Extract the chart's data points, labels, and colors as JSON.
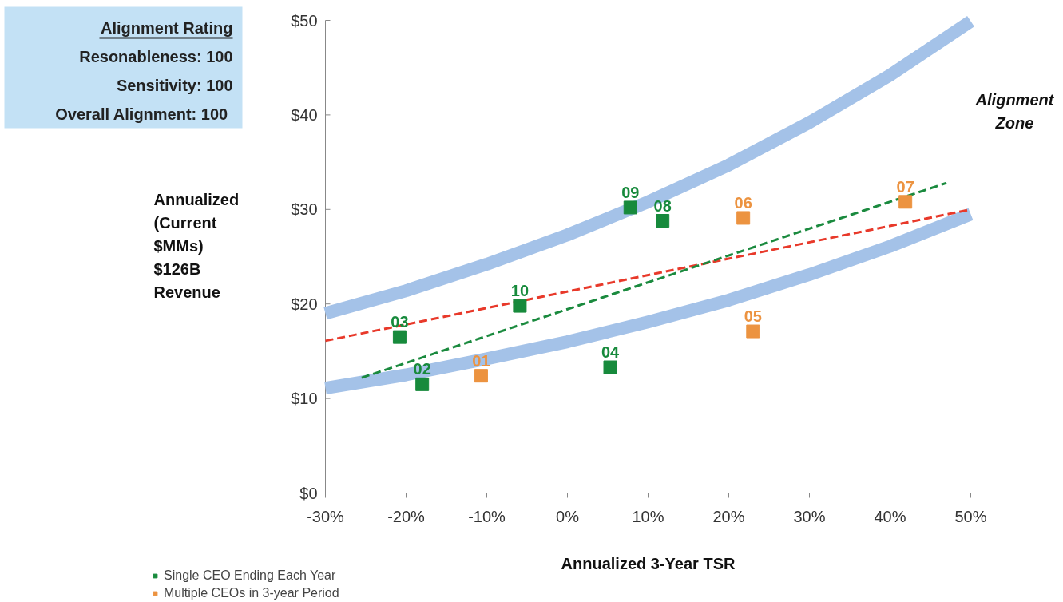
{
  "chart_data": {
    "type": "scatter",
    "xlabel": "Annualized 3-Year TSR",
    "ylabel": "Annualized (Current $MMs) $126B Revenue",
    "xlim": [
      -30,
      50
    ],
    "ylim": [
      0,
      50
    ],
    "xticks": [
      {
        "value": -30,
        "label": "-30%"
      },
      {
        "value": -20,
        "label": "-20%"
      },
      {
        "value": -10,
        "label": "-10%"
      },
      {
        "value": 0,
        "label": "0%"
      },
      {
        "value": 10,
        "label": "10%"
      },
      {
        "value": 20,
        "label": "20%"
      },
      {
        "value": 30,
        "label": "30%"
      },
      {
        "value": 40,
        "label": "40%"
      },
      {
        "value": 50,
        "label": "50%"
      }
    ],
    "yticks": [
      {
        "value": 0,
        "label": "$0"
      },
      {
        "value": 10,
        "label": "$10"
      },
      {
        "value": 20,
        "label": "$20"
      },
      {
        "value": 30,
        "label": "$30"
      },
      {
        "value": 40,
        "label": "$40"
      },
      {
        "value": 50,
        "label": "$50"
      }
    ],
    "legend": "bottom left",
    "marker": "square",
    "annotations": [
      "Alignment Rating",
      "Resonableness: 100",
      "Sensitivity: 100",
      "Overall  Alignment: 100",
      "Alignment Zone",
      {
        "text": "03",
        "x": -20.8,
        "y": 16.5
      },
      {
        "text": "02",
        "x": -18.0,
        "y": 11.5
      },
      {
        "text": "10",
        "x": -5.9,
        "y": 19.8
      },
      {
        "text": "04",
        "x": 5.3,
        "y": 13.3
      },
      {
        "text": "09",
        "x": 7.8,
        "y": 30.2
      },
      {
        "text": "08",
        "x": 11.8,
        "y": 28.8
      },
      {
        "text": "01",
        "x": -10.7,
        "y": 12.4
      },
      {
        "text": "06",
        "x": 21.8,
        "y": 29.1
      },
      {
        "text": "05",
        "x": 23.0,
        "y": 17.1
      },
      {
        "text": "07",
        "x": 41.9,
        "y": 30.8
      }
    ],
    "series": [
      {
        "type": "line",
        "marker": "none",
        "line_style": "solid",
        "color": "#a4c2e8",
        "x": [
          -30,
          -20,
          -10,
          0,
          10,
          20,
          30,
          40,
          50
        ],
        "values": [
          19.0,
          21.4,
          24.2,
          27.3,
          30.8,
          34.7,
          39.2,
          44.2,
          49.9
        ]
      },
      {
        "type": "line",
        "marker": "none",
        "line_style": "solid",
        "color": "#a4c2e8",
        "x": [
          -30,
          -20,
          -10,
          0,
          10,
          20,
          30,
          40,
          50
        ],
        "values": [
          11.1,
          12.5,
          14.2,
          16.0,
          18.1,
          20.4,
          23.1,
          26.1,
          29.5
        ]
      },
      {
        "type": "line",
        "marker": "none",
        "line_style": "dashed",
        "color": "#e8392a",
        "x": [
          -30,
          50
        ],
        "values": [
          16.1,
          30.0
        ]
      },
      {
        "type": "line",
        "marker": "none",
        "line_style": "dashed",
        "color": "#1a8a3e",
        "x": [
          -25.5,
          47
        ],
        "values": [
          12.2,
          32.8
        ]
      },
      {
        "name": "Single CEO Ending Each Year",
        "color": "#178a3c",
        "x": [
          -20.8,
          -18.0,
          -5.9,
          5.3,
          7.8,
          11.8
        ],
        "values": [
          16.5,
          11.5,
          19.8,
          13.3,
          30.2,
          28.8
        ]
      },
      {
        "name": "Multiple CEOs in 3-year Period",
        "color": "#ec9340",
        "x": [
          -10.7,
          21.8,
          23.0,
          41.9
        ],
        "values": [
          12.4,
          29.1,
          17.1,
          30.8
        ]
      }
    ]
  }
}
